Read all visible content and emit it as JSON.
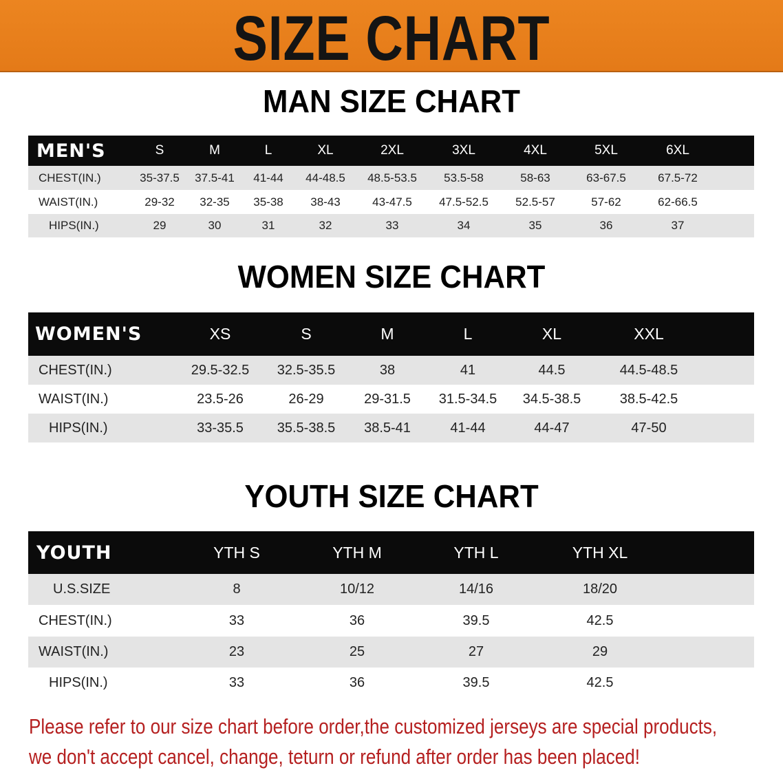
{
  "banner": {
    "title": "SIZE CHART",
    "color": "#E8801E"
  },
  "men": {
    "title": "MAN SIZE CHART",
    "header": [
      "MEN'S",
      "S",
      "M",
      "L",
      "XL",
      "2XL",
      "3XL",
      "4XL",
      "5XL",
      "6XL"
    ],
    "rows": [
      [
        "CHEST(IN.)",
        "35-37.5",
        "37.5-41",
        "41-44",
        "44-48.5",
        "48.5-53.5",
        "53.5-58",
        "58-63",
        "63-67.5",
        "67.5-72"
      ],
      [
        "WAIST(IN.)",
        "29-32",
        "32-35",
        "35-38",
        "38-43",
        "43-47.5",
        "47.5-52.5",
        "52.5-57",
        "57-62",
        "62-66.5"
      ],
      [
        "HIPS(IN.)",
        "29",
        "30",
        "31",
        "32",
        "33",
        "34",
        "35",
        "36",
        "37"
      ]
    ]
  },
  "women": {
    "title": "WOMEN SIZE CHART",
    "header": [
      "WOMEN'S",
      "XS",
      "S",
      "M",
      "L",
      "XL",
      "XXL"
    ],
    "rows": [
      [
        "CHEST(IN.)",
        "29.5-32.5",
        "32.5-35.5",
        "38",
        "41",
        "44.5",
        "44.5-48.5"
      ],
      [
        "WAIST(IN.)",
        "23.5-26",
        "26-29",
        "29-31.5",
        "31.5-34.5",
        "34.5-38.5",
        "38.5-42.5"
      ],
      [
        "HIPS(IN.)",
        "33-35.5",
        "35.5-38.5",
        "38.5-41",
        "41-44",
        "44-47",
        "47-50"
      ]
    ]
  },
  "youth": {
    "title": "YOUTH SIZE CHART",
    "header": [
      "YOUTH",
      "YTH S",
      "YTH M",
      "YTH L",
      "YTH XL"
    ],
    "rows": [
      [
        "U.S.SIZE",
        "8",
        "10/12",
        "14/16",
        "18/20"
      ],
      [
        "CHEST(IN.)",
        "33",
        "36",
        "39.5",
        "42.5"
      ],
      [
        "WAIST(IN.)",
        "23",
        "25",
        "27",
        "29"
      ],
      [
        "HIPS(IN.)",
        "33",
        "36",
        "39.5",
        "42.5"
      ]
    ]
  },
  "notice": {
    "line1": "Please refer to our size chart before order,the customized jerseys are special products,",
    "line2": "we don't accept cancel, change, teturn or refund after order has been placed!",
    "color": "#B52020"
  }
}
